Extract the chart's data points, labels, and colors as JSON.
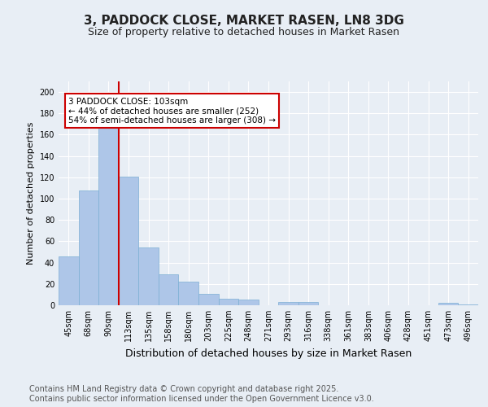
{
  "title": "3, PADDOCK CLOSE, MARKET RASEN, LN8 3DG",
  "subtitle": "Size of property relative to detached houses in Market Rasen",
  "xlabel": "Distribution of detached houses by size in Market Rasen",
  "ylabel": "Number of detached properties",
  "categories": [
    "45sqm",
    "68sqm",
    "90sqm",
    "113sqm",
    "135sqm",
    "158sqm",
    "180sqm",
    "203sqm",
    "225sqm",
    "248sqm",
    "271sqm",
    "293sqm",
    "316sqm",
    "338sqm",
    "361sqm",
    "383sqm",
    "406sqm",
    "428sqm",
    "451sqm",
    "473sqm",
    "496sqm"
  ],
  "values": [
    46,
    108,
    167,
    121,
    54,
    29,
    22,
    11,
    6,
    5,
    0,
    3,
    3,
    0,
    0,
    0,
    0,
    0,
    0,
    2,
    1
  ],
  "bar_color": "#aec6e8",
  "bar_edge_color": "#7bafd4",
  "vline_x": 2.5,
  "vline_color": "#cc0000",
  "annotation_text": "3 PADDOCK CLOSE: 103sqm\n← 44% of detached houses are smaller (252)\n54% of semi-detached houses are larger (308) →",
  "annotation_box_color": "#ffffff",
  "annotation_box_edge": "#cc0000",
  "ylim": [
    0,
    210
  ],
  "yticks": [
    0,
    20,
    40,
    60,
    80,
    100,
    120,
    140,
    160,
    180,
    200
  ],
  "background_color": "#e8eef5",
  "footer": "Contains HM Land Registry data © Crown copyright and database right 2025.\nContains public sector information licensed under the Open Government Licence v3.0.",
  "title_fontsize": 11,
  "subtitle_fontsize": 9,
  "footer_fontsize": 7,
  "annotation_fontsize": 7.5,
  "ylabel_fontsize": 8,
  "xlabel_fontsize": 9,
  "tick_fontsize": 7
}
